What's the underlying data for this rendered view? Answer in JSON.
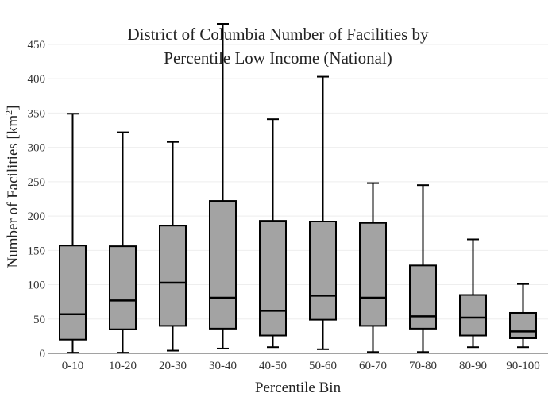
{
  "chart_data": {
    "type": "box",
    "title_line1": "District of Columbia Number of Facilities by",
    "title_line2": "Percentile Low Income (National)",
    "xlabel": "Percentile Bin",
    "ylabel": "Number of Facilities  [km",
    "ylabel_sup": "2",
    "ylabel_close": "]",
    "ylim": [
      0,
      480
    ],
    "yticks": [
      0,
      50,
      100,
      150,
      200,
      250,
      300,
      350,
      400,
      450
    ],
    "grid": true,
    "box_color": "#a3a3a3",
    "categories": [
      "0-10",
      "10-20",
      "20-30",
      "30-40",
      "40-50",
      "50-60",
      "60-70",
      "70-80",
      "80-90",
      "90-100"
    ],
    "boxes": [
      {
        "min": 1,
        "q1": 20,
        "median": 57,
        "q3": 157,
        "max": 349
      },
      {
        "min": 1,
        "q1": 35,
        "median": 77,
        "q3": 156,
        "max": 322
      },
      {
        "min": 4,
        "q1": 40,
        "median": 103,
        "q3": 186,
        "max": 308
      },
      {
        "min": 7,
        "q1": 36,
        "median": 81,
        "q3": 222,
        "max": 480
      },
      {
        "min": 9,
        "q1": 26,
        "median": 62,
        "q3": 193,
        "max": 341
      },
      {
        "min": 6,
        "q1": 49,
        "median": 84,
        "q3": 192,
        "max": 403
      },
      {
        "min": 2,
        "q1": 40,
        "median": 81,
        "q3": 190,
        "max": 248
      },
      {
        "min": 2,
        "q1": 36,
        "median": 54,
        "q3": 128,
        "max": 245
      },
      {
        "min": 9,
        "q1": 26,
        "median": 52,
        "q3": 85,
        "max": 166
      },
      {
        "min": 9,
        "q1": 22,
        "median": 32,
        "q3": 59,
        "max": 101
      }
    ]
  }
}
